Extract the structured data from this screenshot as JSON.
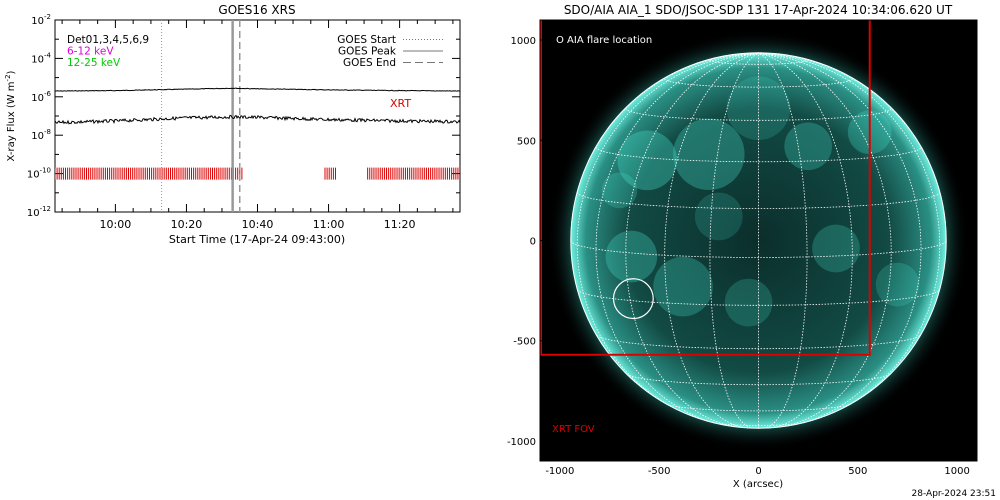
{
  "left_chart": {
    "title": "GOES16 XRS",
    "ylabel": "X-ray Flux (W m",
    "ylabel_sup": "-2",
    "ylabel_tail": ")",
    "xlabel": "Start Time (17-Apr-24 09:43:00)",
    "y_tick_labels": [
      {
        "base": "10",
        "exp": "-2"
      },
      {
        "base": "10",
        "exp": "-4"
      },
      {
        "base": "10",
        "exp": "-6"
      },
      {
        "base": "10",
        "exp": "-8"
      },
      {
        "base": "10",
        "exp": "-10"
      },
      {
        "base": "10",
        "exp": "-12"
      }
    ],
    "legend_left": [
      {
        "text": "Det01,3,4,5,6,9",
        "color": "#000000"
      },
      {
        "text": "6-12 keV",
        "color": "#dd00dd"
      },
      {
        "text": "12-25 keV",
        "color": "#00cc00"
      }
    ],
    "legend_right": [
      {
        "text": "GOES Start",
        "style": "dotted"
      },
      {
        "text": "GOES Peak",
        "style": "solid"
      },
      {
        "text": "GOES End",
        "style": "dashed"
      }
    ],
    "xrt_label": "XRT",
    "colors": {
      "xrt": "#dd0000",
      "vline": "#999999"
    }
  },
  "right_chart": {
    "title": "SDO/AIA AIA_1 SDO/JSOC-SDP 131 17-Apr-2024 10:34:06.620 UT",
    "xlabel": "X (arcsec)",
    "legend": "O AIA flare location",
    "fov_label": "XRT FOV",
    "timestamp": "28-Apr-2024 23:51",
    "colors": {
      "fov": "#dd0000",
      "disk": "#38d8c8"
    }
  },
  "chart_data": [
    {
      "type": "line",
      "title": "GOES16 XRS",
      "x_axis": "time",
      "xlim": [
        "09:43",
        "11:37"
      ],
      "x_ticks": [
        "10:00",
        "10:20",
        "10:40",
        "11:00",
        "11:20"
      ],
      "ylabel": "X-ray Flux (W m-2)",
      "y_scale": "log",
      "ylim": [
        1e-12,
        0.01
      ],
      "series": [
        {
          "name": "",
          "x": [
            "09:43",
            "10:00",
            "10:20",
            "10:33",
            "10:40",
            "11:00",
            "11:20",
            "11:37"
          ],
          "y": [
            2e-06,
            2.1e-06,
            2.5e-06,
            2.8e-06,
            2.6e-06,
            2.3e-06,
            2.1e-06,
            2e-06
          ]
        },
        {
          "name": "",
          "x": [
            "09:43",
            "10:00",
            "10:20",
            "10:33",
            "10:40",
            "11:00",
            "11:20",
            "11:37"
          ],
          "y": [
            4.5e-08,
            5.5e-08,
            8e-08,
            9e-08,
            8.5e-08,
            6.5e-08,
            5.5e-08,
            5e-08
          ]
        }
      ],
      "vlines": [
        {
          "name": "GOES Start",
          "x": "10:13",
          "style": "dotted"
        },
        {
          "name": "GOES Peak",
          "x": "10:33",
          "style": "solid"
        },
        {
          "name": "GOES End",
          "x": "10:35",
          "style": "dashed"
        }
      ],
      "xrt_coverage": [
        [
          "09:43",
          "10:36"
        ],
        [
          "10:59",
          "11:02"
        ],
        [
          "11:11",
          "11:37"
        ]
      ],
      "xrt_y": 1e-10
    },
    {
      "type": "image",
      "title": "SDO/AIA AIA_1 SDO/JSOC-SDP 131 17-Apr-2024 10:34:06.620 UT",
      "xlabel": "X (arcsec)",
      "xlim": [
        -1100,
        1100
      ],
      "ylim": [
        -1100,
        1100
      ],
      "x_ticks": [
        -1000,
        -500,
        0,
        500,
        1000
      ],
      "y_ticks": [
        -1000,
        -500,
        0,
        500,
        1000
      ],
      "disk_radius_arcsec": 945,
      "flare_location": {
        "x": -630,
        "y": -290,
        "radius": 100
      },
      "xrt_fov": {
        "x0": -1100,
        "x1": 560,
        "y0": -570,
        "y1": 1100
      }
    }
  ]
}
